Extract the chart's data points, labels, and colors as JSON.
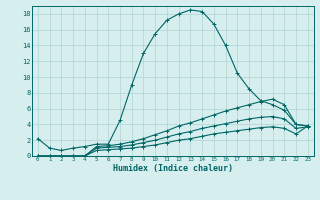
{
  "xlabel": "Humidex (Indice chaleur)",
  "ylabel": "",
  "bg_color": "#d6eeee",
  "grid_color": "#b0d4d4",
  "line_color": "#006666",
  "xlim": [
    -0.5,
    23.5
  ],
  "ylim": [
    0,
    19
  ],
  "xticks": [
    0,
    1,
    2,
    3,
    4,
    5,
    6,
    7,
    8,
    9,
    10,
    11,
    12,
    13,
    14,
    15,
    16,
    17,
    18,
    19,
    20,
    21,
    22,
    23
  ],
  "yticks": [
    0,
    2,
    4,
    6,
    8,
    10,
    12,
    14,
    16,
    18
  ],
  "series": [
    {
      "x": [
        0,
        1,
        2,
        3,
        4,
        5,
        6,
        7,
        8,
        9,
        10,
        11,
        12,
        13,
        14,
        15,
        16,
        17,
        18,
        19,
        20,
        21,
        22,
        23
      ],
      "y": [
        2.2,
        1.0,
        0.7,
        1.0,
        1.2,
        1.5,
        1.5,
        4.5,
        9.0,
        13.0,
        15.5,
        17.2,
        18.0,
        18.5,
        18.3,
        16.7,
        14.0,
        10.5,
        8.5,
        7.0,
        6.5,
        5.8,
        4.0,
        3.8
      ]
    },
    {
      "x": [
        0,
        1,
        2,
        3,
        4,
        5,
        6,
        7,
        8,
        9,
        10,
        11,
        12,
        13,
        14,
        15,
        16,
        17,
        18,
        19,
        20,
        21,
        22,
        23
      ],
      "y": [
        0,
        0,
        0,
        0,
        0,
        1.2,
        1.3,
        1.5,
        1.8,
        2.2,
        2.7,
        3.2,
        3.8,
        4.2,
        4.7,
        5.2,
        5.7,
        6.1,
        6.5,
        6.9,
        7.2,
        6.5,
        4.0,
        3.8
      ]
    },
    {
      "x": [
        0,
        1,
        2,
        3,
        4,
        5,
        6,
        7,
        8,
        9,
        10,
        11,
        12,
        13,
        14,
        15,
        16,
        17,
        18,
        19,
        20,
        21,
        22,
        23
      ],
      "y": [
        0,
        0,
        0,
        0,
        0,
        1.0,
        1.1,
        1.2,
        1.4,
        1.7,
        2.0,
        2.4,
        2.8,
        3.1,
        3.5,
        3.8,
        4.1,
        4.4,
        4.7,
        4.9,
        5.0,
        4.7,
        3.5,
        3.7
      ]
    },
    {
      "x": [
        0,
        1,
        2,
        3,
        4,
        5,
        6,
        7,
        8,
        9,
        10,
        11,
        12,
        13,
        14,
        15,
        16,
        17,
        18,
        19,
        20,
        21,
        22,
        23
      ],
      "y": [
        0,
        0,
        0,
        0,
        0,
        0.7,
        0.8,
        0.9,
        1.0,
        1.2,
        1.4,
        1.7,
        2.0,
        2.2,
        2.5,
        2.8,
        3.0,
        3.2,
        3.4,
        3.6,
        3.7,
        3.5,
        2.8,
        3.8
      ]
    }
  ]
}
